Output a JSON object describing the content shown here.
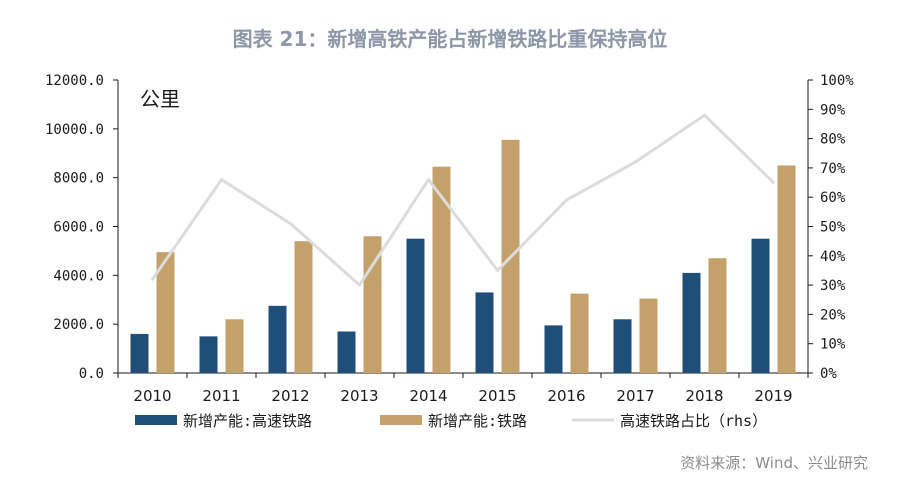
{
  "chart_data": {
    "type": "bar",
    "title": "图表 21：新增高铁产能占新增铁路比重保持高位",
    "unit_label": "公里",
    "categories": [
      "2010",
      "2011",
      "2012",
      "2013",
      "2014",
      "2015",
      "2016",
      "2017",
      "2018",
      "2019"
    ],
    "series": [
      {
        "name": "新增产能:高速铁路",
        "type": "bar",
        "axis": "left",
        "color": "#1f4e79",
        "values": [
          1600,
          1500,
          2750,
          1700,
          5500,
          3300,
          1950,
          2200,
          4100,
          5500
        ]
      },
      {
        "name": "新增产能:铁路",
        "type": "bar",
        "axis": "left",
        "color": "#c4a16b",
        "values": [
          4950,
          2200,
          5400,
          5600,
          8450,
          9550,
          3250,
          3050,
          4700,
          8500
        ]
      },
      {
        "name": "高速铁路占比（rhs）",
        "type": "line",
        "axis": "right",
        "color": "#dcdcdc",
        "values": [
          0.32,
          0.66,
          0.51,
          0.3,
          0.66,
          0.35,
          0.59,
          0.72,
          0.88,
          0.65
        ]
      }
    ],
    "left_axis": {
      "min": 0,
      "max": 12000,
      "ticks": [
        "0.0",
        "2000.0",
        "4000.0",
        "6000.0",
        "8000.0",
        "10000.0",
        "12000.0"
      ]
    },
    "right_axis": {
      "min": 0,
      "max": 1,
      "ticks": [
        "0%",
        "10%",
        "20%",
        "30%",
        "40%",
        "50%",
        "60%",
        "70%",
        "80%",
        "90%",
        "100%"
      ]
    },
    "legend": [
      "新增产能:高速铁路",
      "新增产能:铁路",
      "高速铁路占比（rhs）"
    ],
    "legend_placement": "bottom",
    "source": "资料来源：Wind、兴业研究"
  }
}
